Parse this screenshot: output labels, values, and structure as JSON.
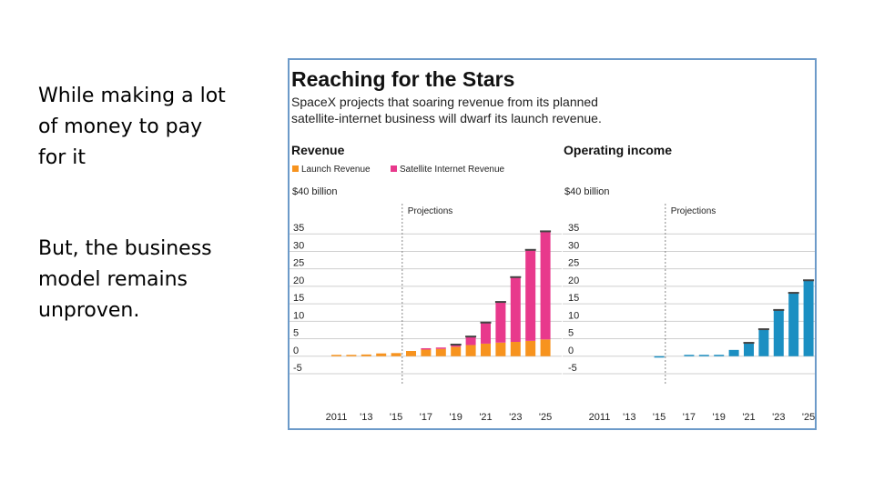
{
  "slide": {
    "bullets": [
      "While making a lot of money to pay for it",
      "But, the business model remains unproven."
    ]
  },
  "figure": {
    "title": "Reaching for the Stars",
    "subtitle_line1": "SpaceX projects that soaring revenue from its planned",
    "subtitle_line2": "satellite-internet business will dwarf its launch revenue."
  },
  "colors": {
    "launch": "#f7931e",
    "satellite": "#e8398c",
    "operating": "#1b8fc2",
    "border": "#6c9ac9",
    "grid": "#cfcfcf",
    "text": "#222222"
  },
  "chart_data": [
    {
      "type": "bar",
      "stacked": true,
      "title": "Revenue",
      "unit_label": "$40 billion",
      "annotation": "Projections",
      "projection_start": "'16",
      "x": [
        "2011",
        "'12",
        "'13",
        "'14",
        "'15",
        "'16",
        "'17",
        "'18",
        "'19",
        "'20",
        "'21",
        "'22",
        "'23",
        "'24",
        "'25"
      ],
      "x_tick_labels": [
        "2011",
        "'13",
        "'15",
        "'17",
        "'19",
        "'21",
        "'23",
        "'25"
      ],
      "y_ticks": [
        "35",
        "30",
        "25",
        "20",
        "15",
        "10",
        "5",
        "0",
        "-5"
      ],
      "ylim": [
        -5,
        40
      ],
      "legend": [
        {
          "name": "Launch Revenue",
          "color_key": "launch"
        },
        {
          "name": "Satellite Internet Revenue",
          "color_key": "satellite"
        }
      ],
      "series": [
        {
          "name": "Launch Revenue",
          "values": [
            0.1,
            0.3,
            0.5,
            0.8,
            0.9,
            1.5,
            1.9,
            2.1,
            2.7,
            3.2,
            3.6,
            3.9,
            4.1,
            4.4,
            4.8
          ]
        },
        {
          "name": "Satellite Internet Revenue",
          "values": [
            0,
            0,
            0,
            0,
            0,
            0,
            0.1,
            0.3,
            0.5,
            2.3,
            5.9,
            11.5,
            18.4,
            25.9,
            30.8
          ]
        }
      ]
    },
    {
      "type": "bar",
      "title": "Operating income",
      "unit_label": "$40 billion",
      "annotation": "Projections",
      "projection_start": "'16",
      "x": [
        "2011",
        "'12",
        "'13",
        "'14",
        "'15",
        "'16",
        "'17",
        "'18",
        "'19",
        "'20",
        "'21",
        "'22",
        "'23",
        "'24",
        "'25"
      ],
      "x_tick_labels": [
        "2011",
        "'13",
        "'15",
        "'17",
        "'19",
        "'21",
        "'23",
        "'25"
      ],
      "y_ticks": [
        "35",
        "30",
        "25",
        "20",
        "15",
        "10",
        "5",
        "0",
        "-5"
      ],
      "ylim": [
        -5,
        40
      ],
      "series": [
        {
          "name": "Operating income",
          "values": [
            0,
            0,
            0,
            0,
            -0.3,
            0,
            0.2,
            0.3,
            0.4,
            1.8,
            3.7,
            7.6,
            13.1,
            18.0,
            21.6
          ]
        }
      ]
    }
  ]
}
